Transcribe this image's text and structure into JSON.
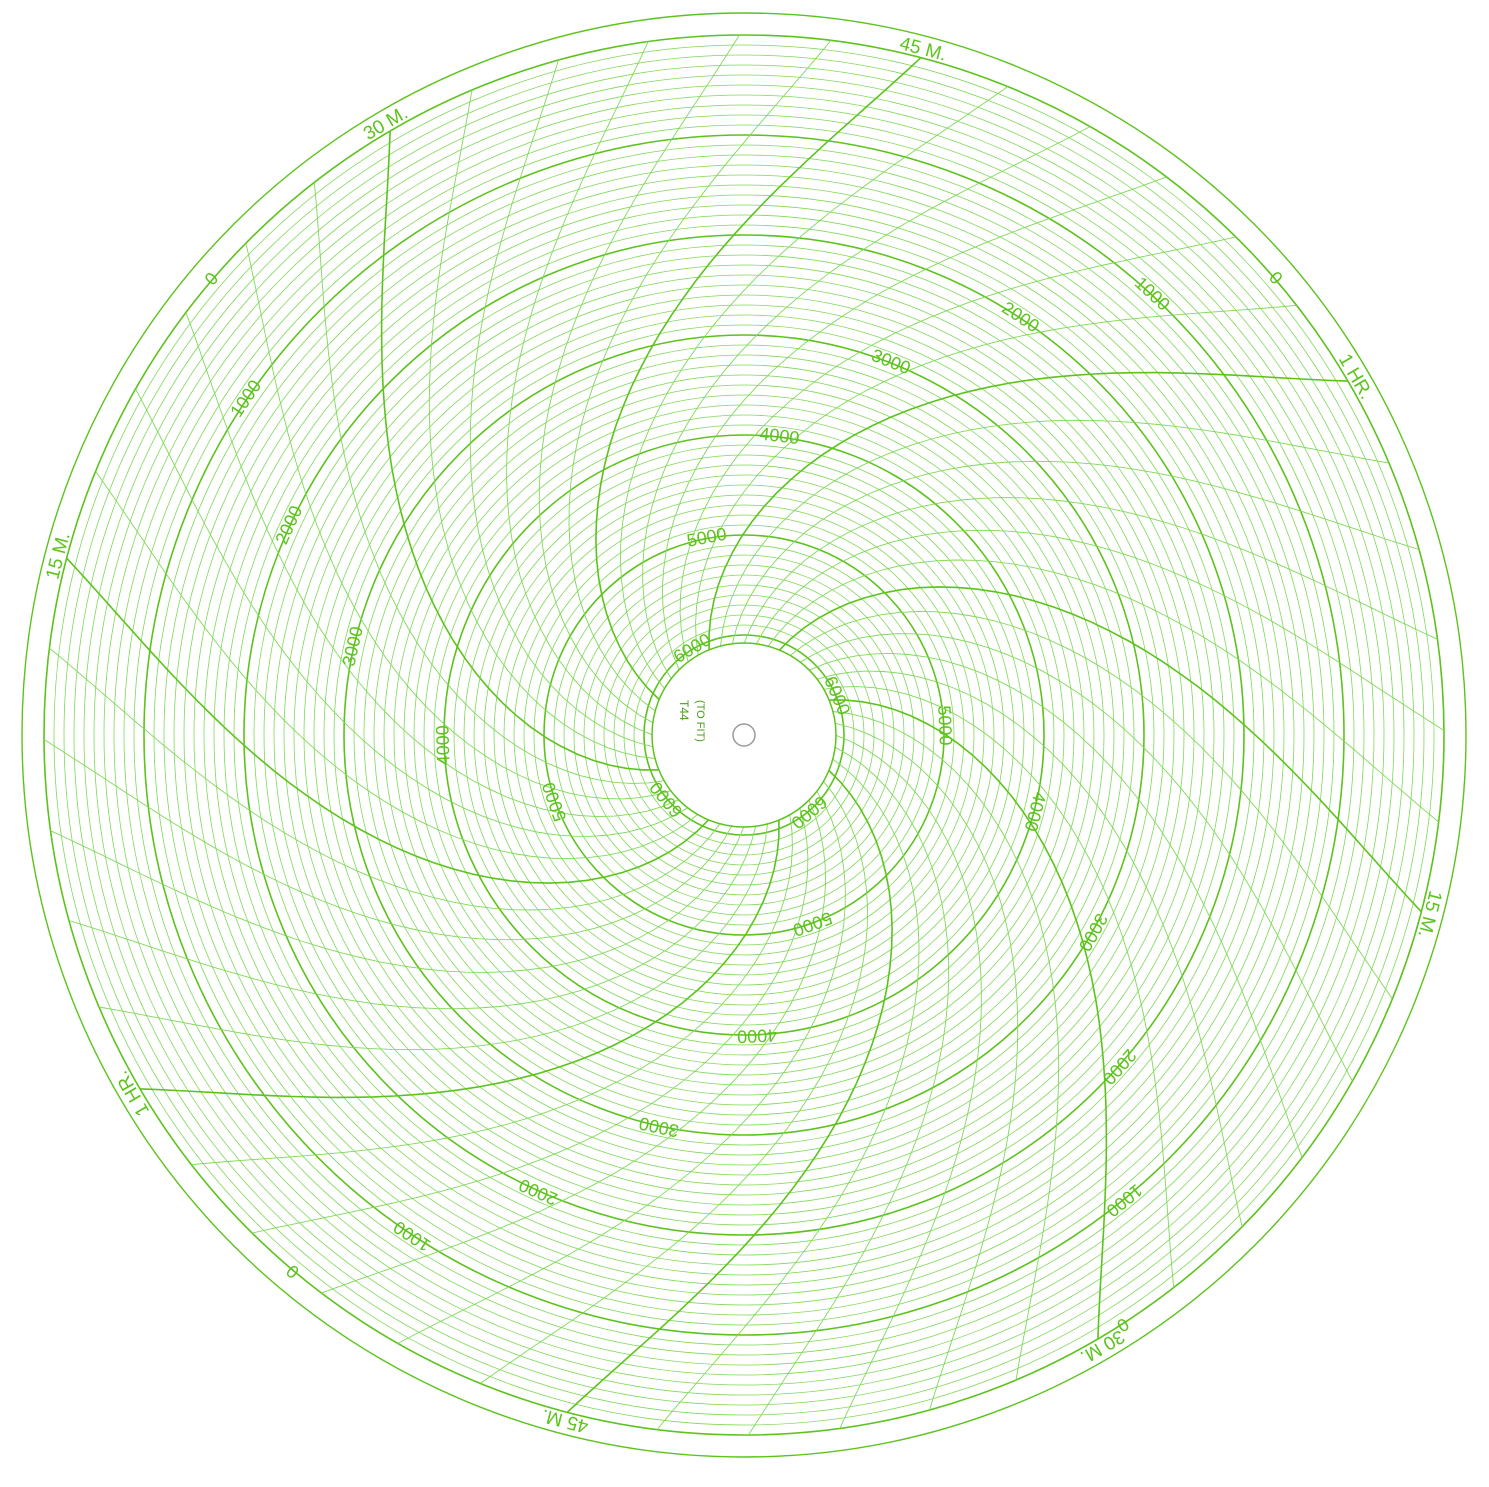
{
  "chart_data": {
    "type": "circular-chart",
    "form": "T44",
    "form_note": "(TO FIT)",
    "radial_scale": {
      "min": 0,
      "max": 6000,
      "major_step": 1000,
      "minor_divisions_per_major": 10,
      "labels": [
        "0",
        "1000",
        "2000",
        "3000",
        "4000",
        "5000",
        "6000"
      ]
    },
    "time_scale": {
      "revolution_minutes": 120,
      "hour_marks": 2,
      "marks_per_hour": [
        "15 M.",
        "30 M.",
        "45 M.",
        "1 HR."
      ],
      "hour_label": "1 HR.",
      "minute_labels": [
        "15 M.",
        "30 M.",
        "45 M."
      ]
    },
    "colors": {
      "grid": "#7ed957",
      "major": "#5cc31c",
      "text": "#5cc31c",
      "paper": "#ffffff",
      "trace": "#1a1a1a"
    },
    "trace": {
      "description_visible": false
    }
  }
}
